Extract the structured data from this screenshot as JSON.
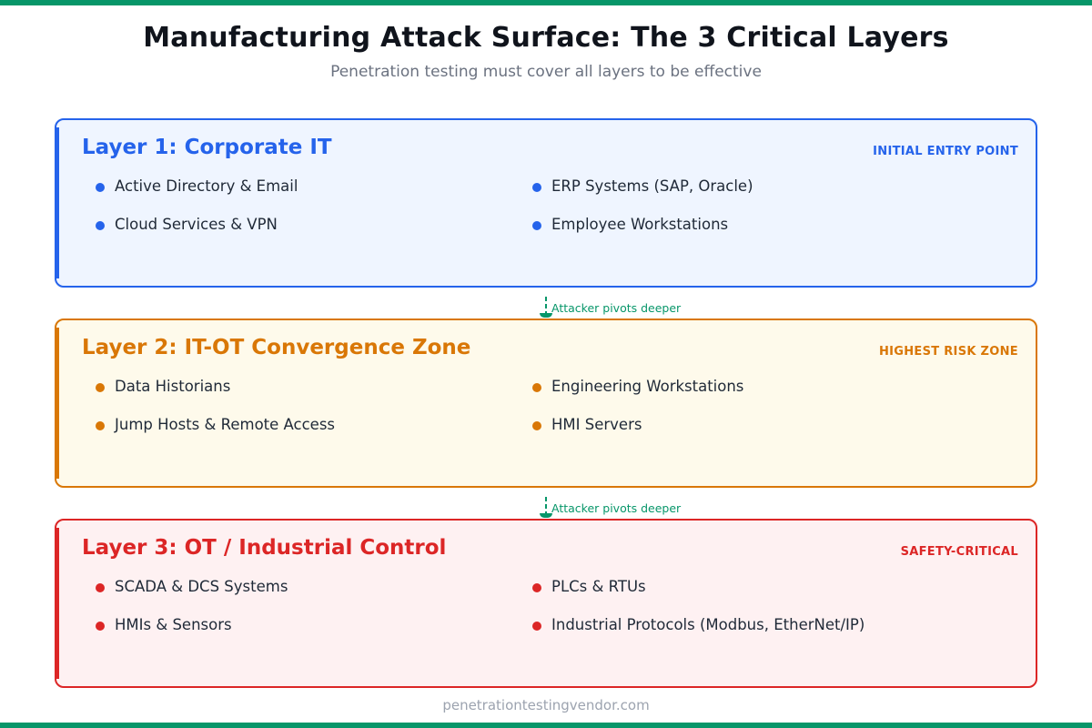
{
  "header": {
    "title": "Manufacturing Attack Surface: The 3 Critical Layers",
    "subtitle": "Penetration testing must cover all layers to be effective"
  },
  "colors": {
    "brand_green": "#079669",
    "layer1": "#2563eb",
    "layer2": "#d97706",
    "layer3": "#dc2626"
  },
  "layers": [
    {
      "name": "Layer 1: Corporate IT",
      "tag": "INITIAL ENTRY POINT",
      "items": [
        "Active Directory & Email",
        "Cloud Services & VPN",
        "ERP Systems (SAP, Oracle)",
        "Employee Workstations"
      ]
    },
    {
      "name": "Layer 2: IT-OT Convergence Zone",
      "tag": "HIGHEST RISK ZONE",
      "items": [
        "Data Historians",
        "Jump Hosts & Remote Access",
        "Engineering Workstations",
        "HMI Servers"
      ]
    },
    {
      "name": "Layer 3: OT / Industrial Control",
      "tag": "SAFETY-CRITICAL",
      "items": [
        "SCADA & DCS Systems",
        "HMIs & Sensors",
        "PLCs & RTUs",
        "Industrial Protocols (Modbus, EtherNet/IP)"
      ]
    }
  ],
  "connectors": [
    {
      "label": "Attacker pivots deeper",
      "icon": "arrow-down-icon"
    },
    {
      "label": "Attacker pivots deeper",
      "icon": "arrow-down-icon"
    }
  ],
  "footer": {
    "text": "penetrationtestingvendor.com"
  }
}
